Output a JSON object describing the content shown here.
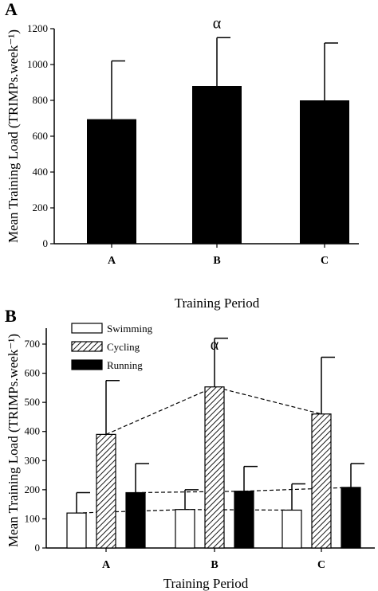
{
  "chart_data": [
    {
      "panel_label": "A",
      "type": "bar",
      "categories": [
        "A",
        "B",
        "C"
      ],
      "values": [
        695,
        880,
        800
      ],
      "errors_upper": [
        1020,
        1150,
        1120
      ],
      "ylabel": "Mean Training Load (TRIMPs.week⁻¹)",
      "xlabel": "Training Period",
      "ylim": [
        0,
        1200
      ],
      "yticks": [
        0,
        200,
        400,
        600,
        800,
        1000,
        1200
      ],
      "significance": {
        "category": "B",
        "symbol": "α"
      },
      "bar_color": "#000000"
    },
    {
      "panel_label": "B",
      "type": "bar",
      "categories": [
        "A",
        "B",
        "C"
      ],
      "series": [
        {
          "name": "Swimming",
          "fill": "white",
          "values": [
            120,
            132,
            130
          ],
          "errors_upper": [
            190,
            200,
            220
          ]
        },
        {
          "name": "Cycling",
          "fill": "hatched",
          "values": [
            390,
            553,
            460
          ],
          "errors_upper": [
            575,
            720,
            655
          ]
        },
        {
          "name": "Running",
          "fill": "black",
          "values": [
            190,
            195,
            208
          ],
          "errors_upper": [
            290,
            280,
            290
          ]
        }
      ],
      "ylabel": "Mean Training Load (TRIMPs.week⁻¹)",
      "xlabel": "Training Period",
      "ylim": [
        0,
        700
      ],
      "yticks": [
        0,
        100,
        200,
        300,
        400,
        500,
        600,
        700
      ],
      "significance": {
        "category": "B",
        "symbol": "α"
      },
      "legend_position": "top-left",
      "trend_lines": "dashed"
    }
  ]
}
